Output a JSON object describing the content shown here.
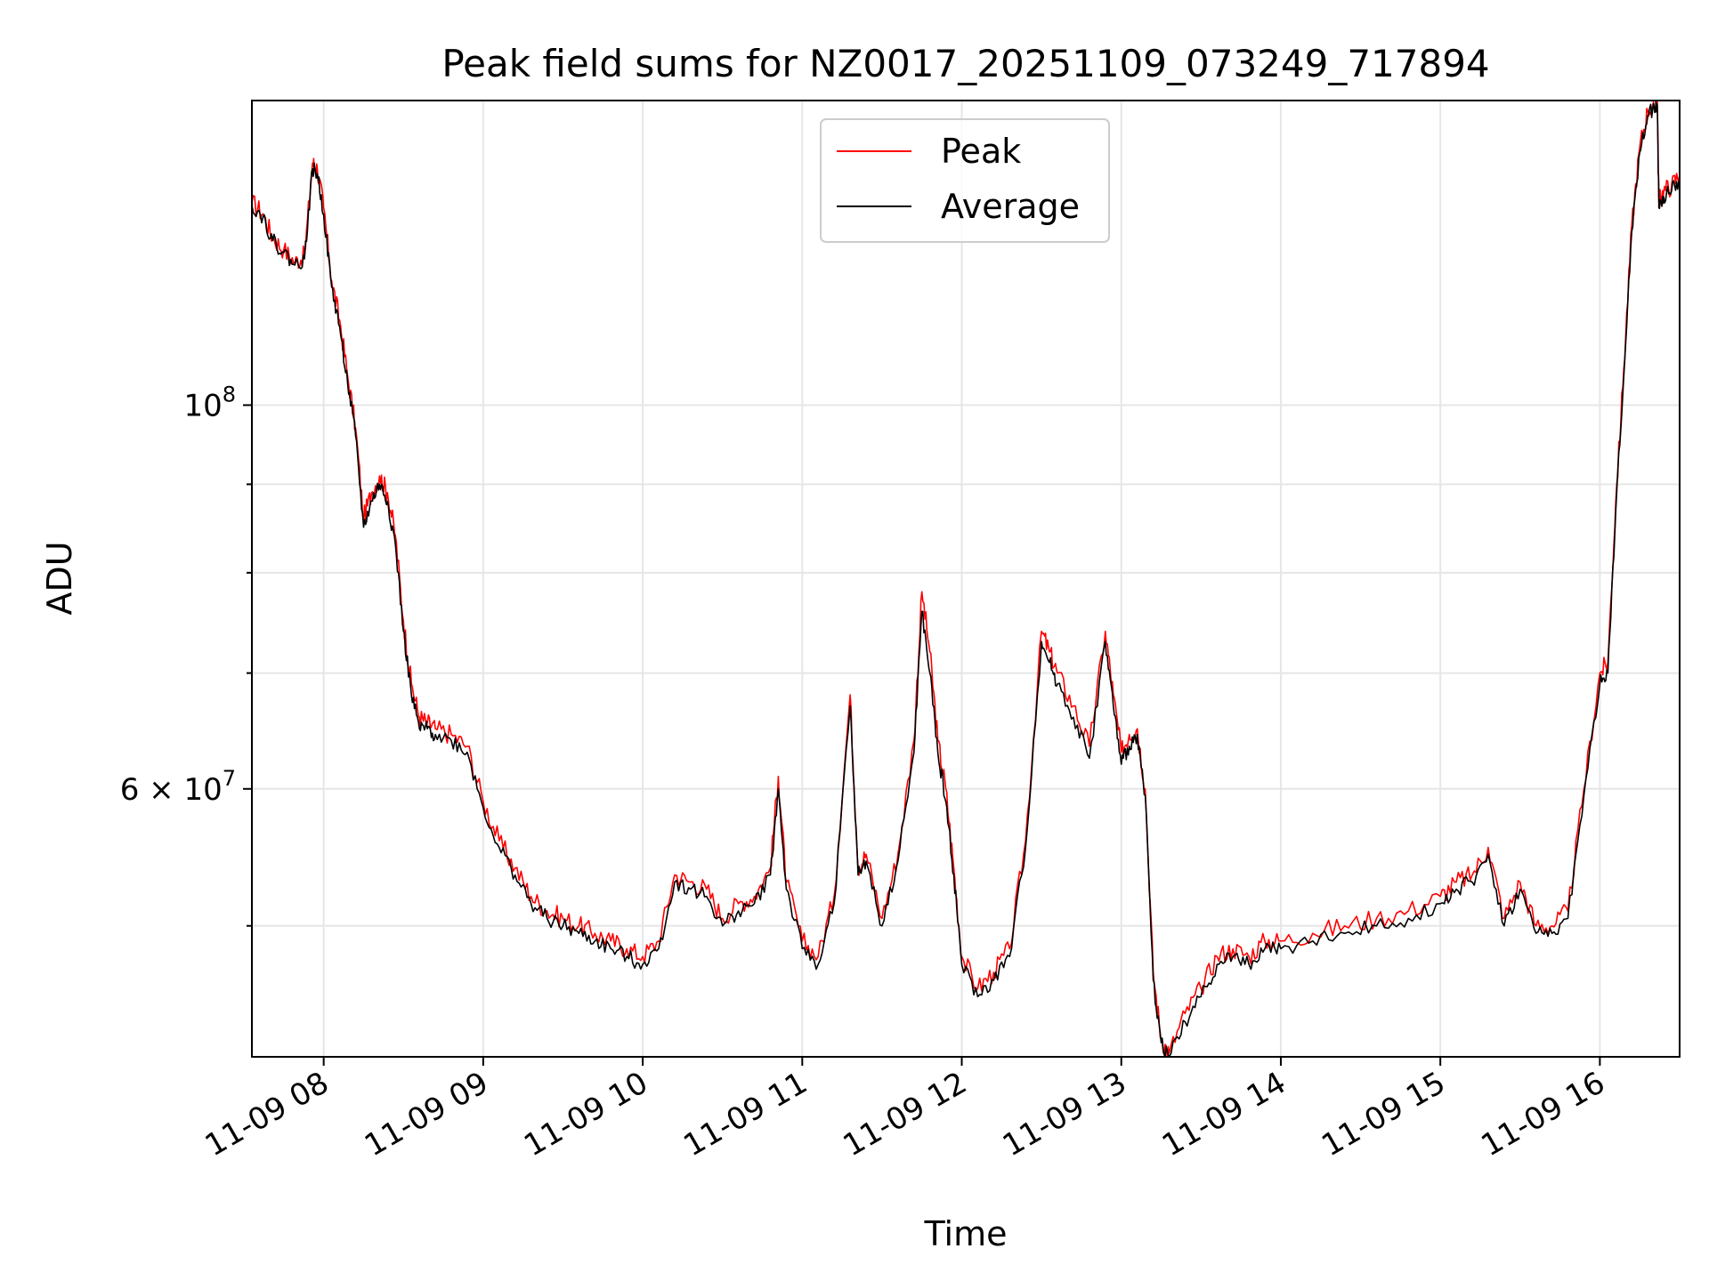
{
  "chart_data": {
    "type": "line",
    "title": "Peak field sums for NZ0017_20251109_073249_717894",
    "xlabel": "Time",
    "ylabel": "ADU",
    "yscale": "log",
    "ylim": [
      42000000,
      150000000
    ],
    "xlim": [
      7.55,
      16.5
    ],
    "x_unit": "hour of day",
    "grid": true,
    "legend_position": "top-center",
    "x_ticks": [
      {
        "value": 8,
        "label": "11-09 08"
      },
      {
        "value": 9,
        "label": "11-09 09"
      },
      {
        "value": 10,
        "label": "11-09 10"
      },
      {
        "value": 11,
        "label": "11-09 11"
      },
      {
        "value": 12,
        "label": "11-09 12"
      },
      {
        "value": 13,
        "label": "11-09 13"
      },
      {
        "value": 14,
        "label": "11-09 14"
      },
      {
        "value": 15,
        "label": "11-09 15"
      },
      {
        "value": 16,
        "label": "11-09 16"
      }
    ],
    "y_ticks_major": [
      {
        "value": 100000000,
        "base": "10",
        "exp": "8",
        "coef": ""
      },
      {
        "value": 60000000,
        "base": "10",
        "exp": "7",
        "coef": "6 × "
      }
    ],
    "y_ticks_minor": [
      50000000,
      70000000,
      80000000,
      90000000
    ],
    "series": [
      {
        "name": "Peak",
        "color": "#ff0000",
        "x": [
          7.55,
          7.62,
          7.68,
          7.75,
          7.82,
          7.88,
          7.93,
          7.96,
          8.0,
          8.05,
          8.1,
          8.15,
          8.2,
          8.25,
          8.3,
          8.35,
          8.4,
          8.45,
          8.5,
          8.55,
          8.6,
          8.65,
          8.7,
          8.8,
          8.9,
          9.0,
          9.1,
          9.2,
          9.3,
          9.4,
          9.5,
          9.6,
          9.7,
          9.8,
          9.9,
          10.0,
          10.1,
          10.2,
          10.3,
          10.4,
          10.5,
          10.6,
          10.7,
          10.8,
          10.85,
          10.9,
          11.0,
          11.1,
          11.2,
          11.3,
          11.35,
          11.4,
          11.5,
          11.6,
          11.7,
          11.75,
          11.8,
          11.85,
          11.9,
          11.95,
          12.0,
          12.1,
          12.2,
          12.3,
          12.4,
          12.5,
          12.55,
          12.6,
          12.7,
          12.8,
          12.9,
          12.95,
          13.0,
          13.05,
          13.1,
          13.15,
          13.2,
          13.25,
          13.3,
          13.4,
          13.5,
          13.6,
          13.7,
          13.8,
          13.9,
          14.0,
          14.2,
          14.4,
          14.6,
          14.8,
          15.0,
          15.1,
          15.2,
          15.3,
          15.4,
          15.5,
          15.6,
          15.7,
          15.8,
          15.9,
          16.0,
          16.05,
          16.1,
          16.15,
          16.2,
          16.25,
          16.3,
          16.35,
          16.36,
          16.37,
          16.4,
          16.45,
          16.5
        ],
        "values": [
          131000000,
          129000000,
          125000000,
          123000000,
          121000000,
          122000000,
          138000000,
          137000000,
          130000000,
          118000000,
          112000000,
          104000000,
          97000000,
          86000000,
          89000000,
          91000000,
          89000000,
          84000000,
          75000000,
          69000000,
          66000000,
          65500000,
          65000000,
          64500000,
          63500000,
          59000000,
          56000000,
          54000000,
          52000000,
          51000000,
          50500000,
          50000000,
          49500000,
          49000000,
          48500000,
          48000000,
          49000000,
          53500000,
          53000000,
          52500000,
          50500000,
          51500000,
          52000000,
          54000000,
          61000000,
          53000000,
          49000000,
          48000000,
          52000000,
          68000000,
          54000000,
          55000000,
          50500000,
          55000000,
          64000000,
          78000000,
          72000000,
          64000000,
          60000000,
          54000000,
          48000000,
          46000000,
          47000000,
          48500000,
          56000000,
          74000000,
          72000000,
          70000000,
          67000000,
          63500000,
          74000000,
          68000000,
          63000000,
          64500000,
          65000000,
          60000000,
          47000000,
          43000000,
          42200000,
          44500000,
          46000000,
          48000000,
          48500000,
          48000000,
          49000000,
          49000000,
          49500000,
          50000000,
          50500000,
          51000000,
          52000000,
          53000000,
          53500000,
          55500000,
          50500000,
          53000000,
          50000000,
          50000000,
          51000000,
          60000000,
          70000000,
          71000000,
          88000000,
          105000000,
          127000000,
          141000000,
          148000000,
          150000000,
          150000000,
          131000000,
          133000000,
          134000000,
          136000000
        ]
      },
      {
        "name": "Average",
        "color": "#000000",
        "x": [
          7.55,
          7.62,
          7.68,
          7.75,
          7.82,
          7.88,
          7.93,
          7.96,
          8.0,
          8.05,
          8.1,
          8.15,
          8.2,
          8.25,
          8.3,
          8.35,
          8.4,
          8.45,
          8.5,
          8.55,
          8.6,
          8.65,
          8.7,
          8.8,
          8.9,
          9.0,
          9.1,
          9.2,
          9.3,
          9.4,
          9.5,
          9.6,
          9.7,
          9.8,
          9.9,
          10.0,
          10.1,
          10.2,
          10.3,
          10.4,
          10.5,
          10.6,
          10.7,
          10.8,
          10.85,
          10.9,
          11.0,
          11.1,
          11.2,
          11.3,
          11.35,
          11.4,
          11.5,
          11.6,
          11.7,
          11.75,
          11.8,
          11.85,
          11.9,
          11.95,
          12.0,
          12.1,
          12.2,
          12.3,
          12.4,
          12.5,
          12.55,
          12.6,
          12.7,
          12.8,
          12.9,
          12.95,
          13.0,
          13.05,
          13.1,
          13.15,
          13.2,
          13.25,
          13.3,
          13.4,
          13.5,
          13.6,
          13.7,
          13.8,
          13.9,
          14.0,
          14.2,
          14.4,
          14.6,
          14.8,
          15.0,
          15.1,
          15.2,
          15.3,
          15.4,
          15.5,
          15.6,
          15.7,
          15.8,
          15.9,
          16.0,
          16.05,
          16.1,
          16.15,
          16.2,
          16.25,
          16.3,
          16.35,
          16.36,
          16.37,
          16.4,
          16.45,
          16.5
        ],
        "values": [
          130500000,
          128500000,
          124500000,
          122500000,
          120500000,
          121500000,
          137000000,
          136000000,
          129000000,
          117000000,
          111000000,
          103000000,
          96000000,
          85000000,
          88000000,
          90000000,
          88000000,
          83000000,
          74000000,
          68000000,
          65000000,
          65000000,
          64500000,
          64000000,
          63000000,
          58500000,
          55500000,
          53500000,
          51500000,
          50500000,
          50000000,
          49500000,
          49000000,
          48500000,
          48000000,
          47500000,
          48500000,
          53000000,
          52500000,
          52000000,
          50000000,
          51000000,
          51500000,
          53500000,
          60000000,
          52500000,
          48500000,
          47500000,
          51500000,
          67000000,
          53500000,
          54500000,
          50000000,
          54500000,
          63000000,
          76000000,
          70000000,
          63000000,
          59000000,
          53500000,
          47500000,
          45500000,
          46500000,
          48000000,
          55500000,
          73000000,
          71000000,
          69000000,
          66000000,
          62500000,
          73000000,
          67000000,
          62000000,
          63500000,
          64500000,
          59500000,
          46500000,
          42800000,
          42000000,
          44000000,
          45500000,
          47500000,
          48000000,
          47500000,
          48500000,
          48500000,
          49000000,
          49500000,
          50000000,
          50500000,
          51500000,
          52500000,
          53000000,
          55000000,
          50000000,
          52500000,
          49500000,
          49500000,
          50500000,
          59500000,
          69000000,
          70000000,
          87000000,
          104000000,
          126000000,
          140000000,
          147000000,
          149000000,
          149000000,
          130000000,
          132000000,
          133000000,
          135000000
        ]
      }
    ]
  }
}
